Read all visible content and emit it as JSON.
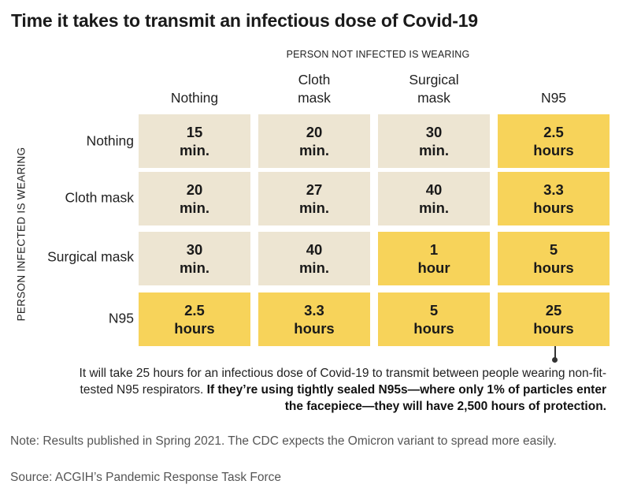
{
  "chart_data": {
    "type": "table",
    "title": "Time it takes to transmit an infectious dose of Covid-19",
    "column_axis_label": "PERSON NOT INFECTED IS WEARING",
    "row_axis_label": "PERSON INFECTED IS WEARING",
    "columns": [
      "Nothing",
      "Cloth\nmask",
      "Surgical\nmask",
      "N95"
    ],
    "rows": [
      "Nothing",
      "Cloth mask",
      "Surgical mask",
      "N95"
    ],
    "cells": [
      [
        "15\nmin.",
        "20\nmin.",
        "30\nmin.",
        "2.5\nhours"
      ],
      [
        "20\nmin.",
        "27\nmin.",
        "40\nmin.",
        "3.3\nhours"
      ],
      [
        "30\nmin.",
        "40\nmin.",
        "1\nhour",
        "5\nhours"
      ],
      [
        "2.5\nhours",
        "3.3\nhours",
        "5\nhours",
        "25\nhours"
      ]
    ],
    "values_hours": [
      [
        0.25,
        0.333,
        0.5,
        2.5
      ],
      [
        0.333,
        0.45,
        0.667,
        3.3
      ],
      [
        0.5,
        0.667,
        1,
        5
      ],
      [
        2.5,
        3.3,
        5,
        25
      ]
    ],
    "highlight_threshold_hours": 1,
    "colors": {
      "under_1_hour": "#ede5d2",
      "1_hour_or_more": "#f7d35a"
    },
    "annotation": {
      "text_1": "It will take 25 hours for an infectious dose of Covid-19 to transmit between people wearing non-fit-tested N95 respirators. ",
      "text_2_bold": "If they’re using tightly sealed N95s—where only 1% of particles enter the facepiece—they will have 2,500 hours of protection."
    },
    "note": "Note: Results published in Spring 2021. The CDC expects the Omicron variant to spread more easily.",
    "source": "Source: ACGIH’s Pandemic Response Task Force"
  }
}
